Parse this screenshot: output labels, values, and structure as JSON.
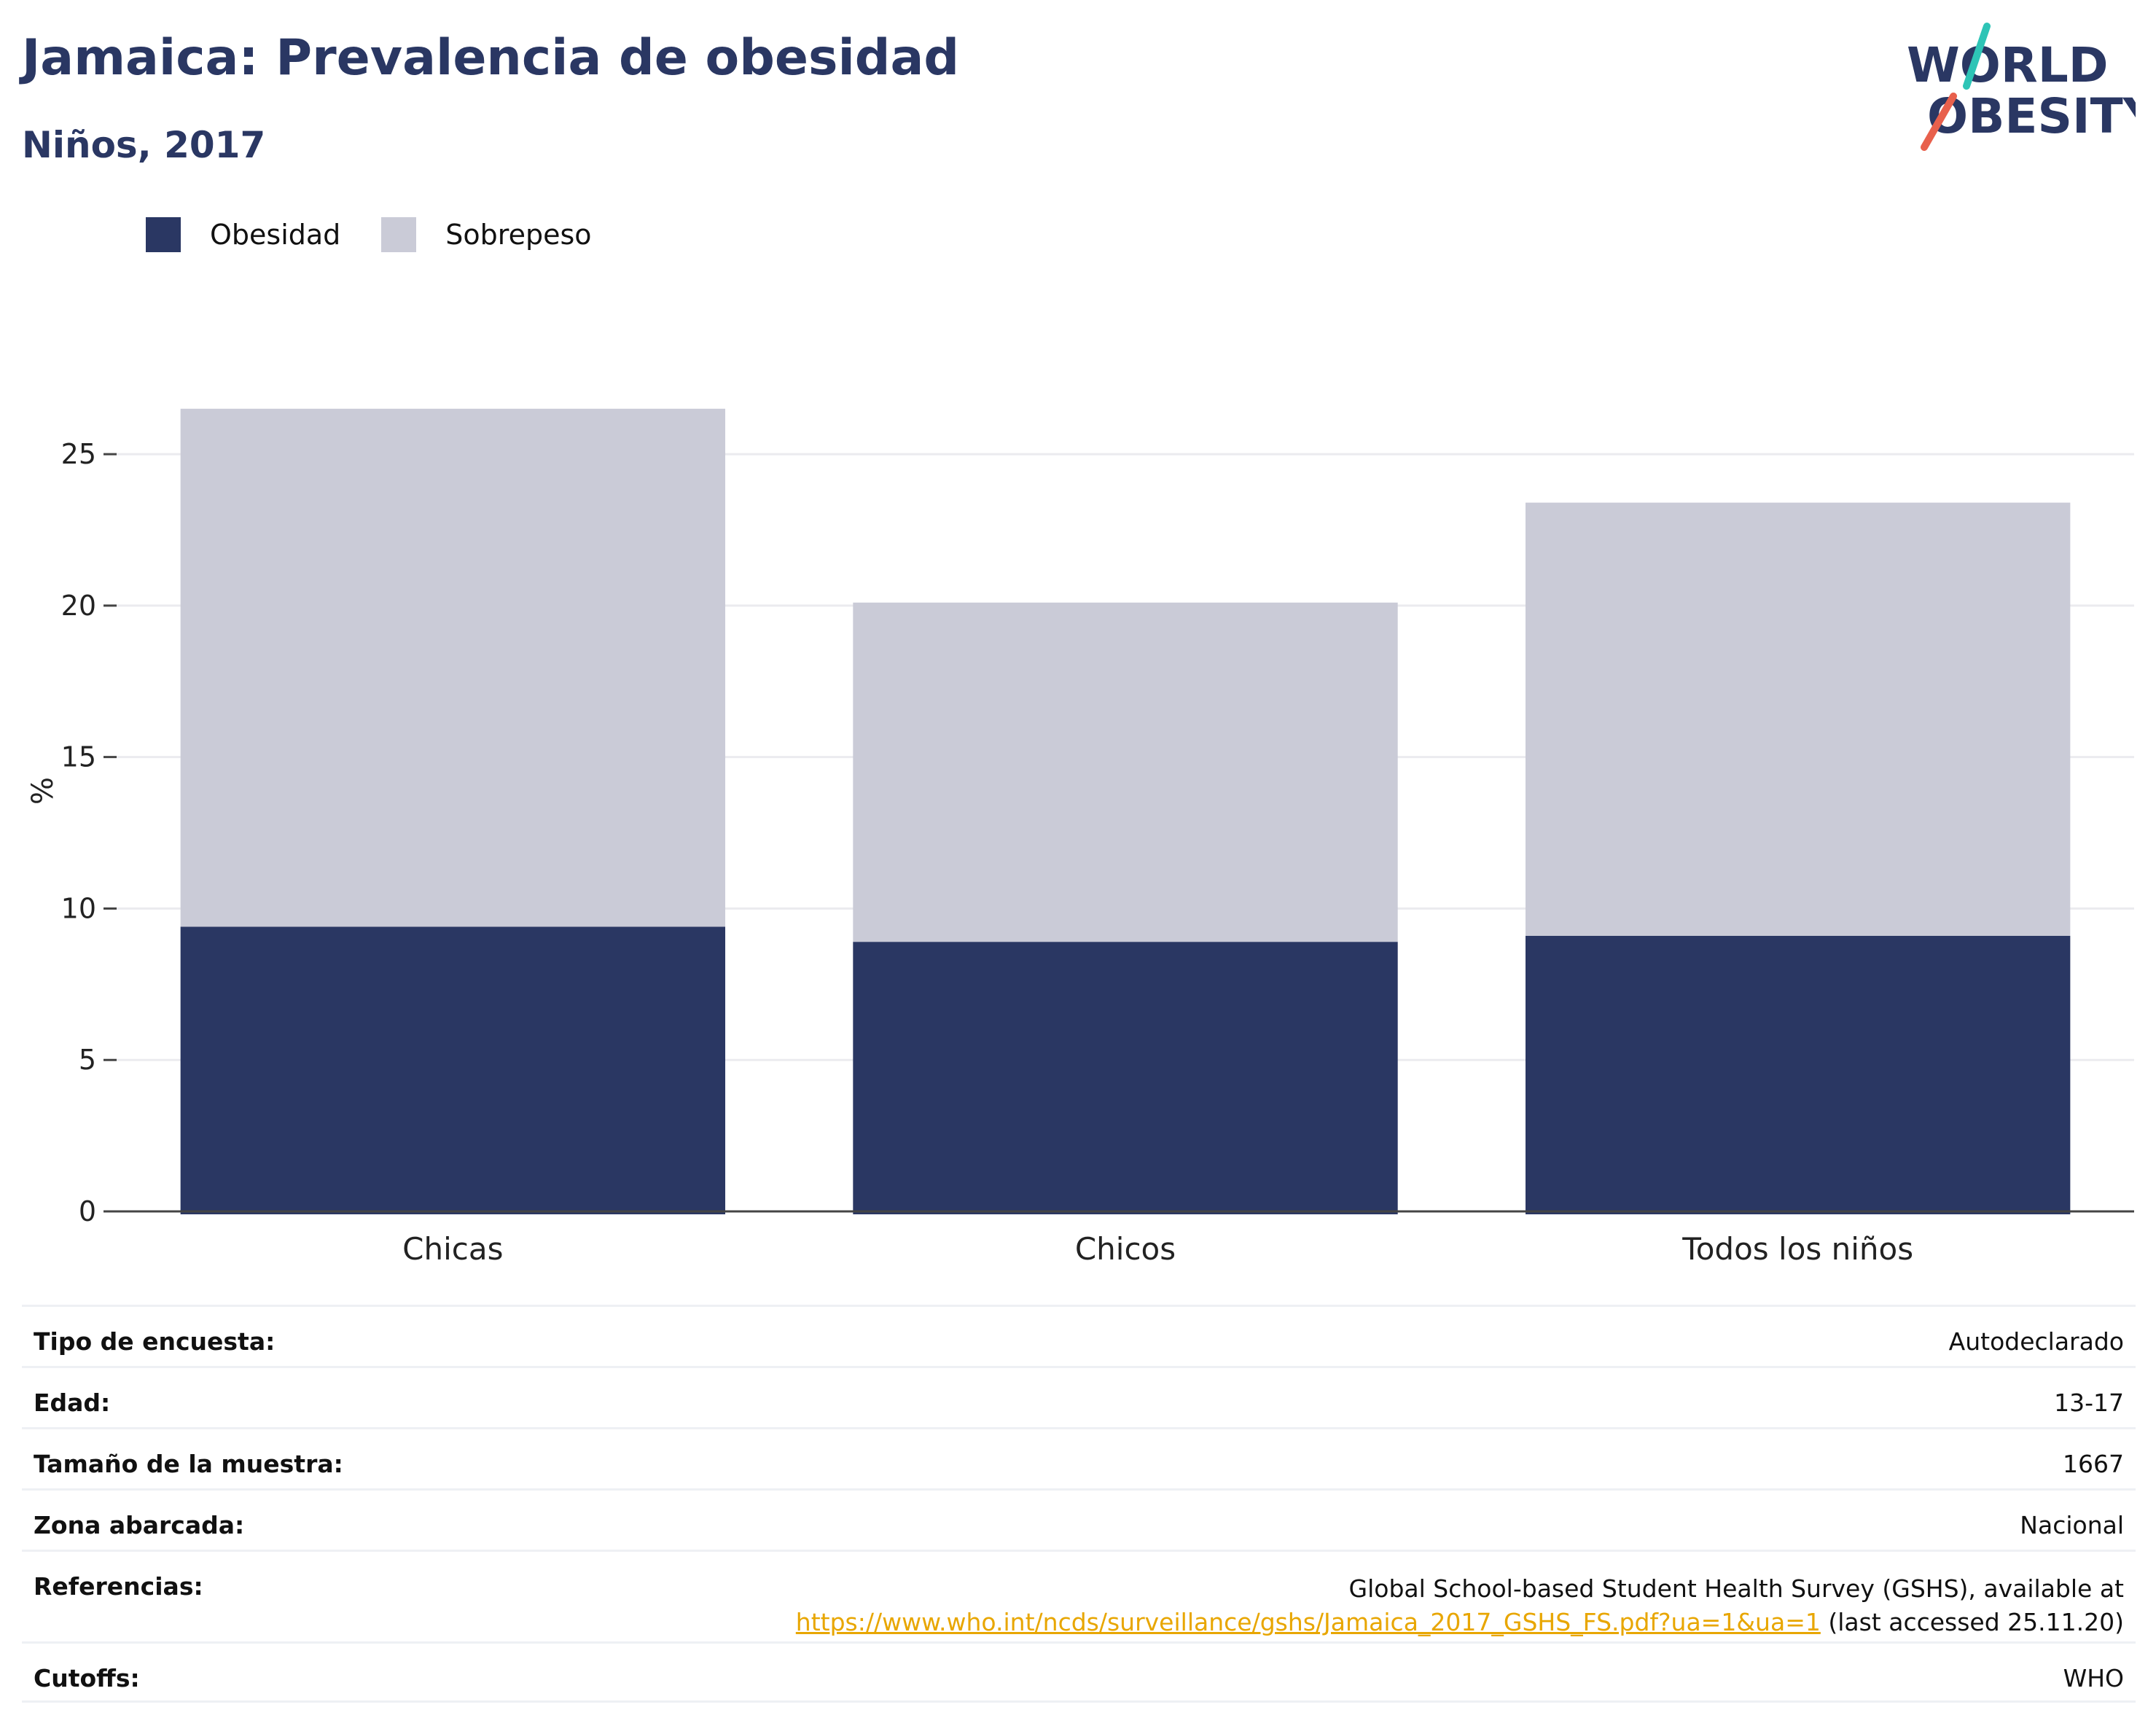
{
  "header": {
    "title": "Jamaica: Prevalencia de obesidad",
    "subtitle": "Niños, 2017"
  },
  "logo": {
    "line1": "WORLD",
    "line2": "OBESITY",
    "icon": "world-obesity-logo-icon",
    "slash_colors": [
      "#2ec4b6",
      "#e8604c"
    ]
  },
  "legend": {
    "items": [
      {
        "label": "Obesidad",
        "color": "#2a3763"
      },
      {
        "label": "Sobrepeso",
        "color": "#cacbd7"
      }
    ],
    "placement": "top-left"
  },
  "chart_data": {
    "type": "bar",
    "stacked": true,
    "categories": [
      "Chicas",
      "Chicos",
      "Todos los niños"
    ],
    "series": [
      {
        "name": "Obesidad",
        "values": [
          9.4,
          8.9,
          9.1
        ],
        "color": "#2a3763"
      },
      {
        "name": "Sobrepeso",
        "values": [
          17.1,
          11.2,
          14.3
        ],
        "color": "#cacbd7"
      }
    ],
    "ylabel": "%",
    "ylim": [
      0,
      27
    ],
    "yticks": [
      0,
      5,
      10,
      15,
      20,
      25
    ],
    "grid": true,
    "legend_placement": "top-left"
  },
  "info": {
    "rows": [
      {
        "label": "Tipo de encuesta:",
        "value": "Autodeclarado"
      },
      {
        "label": "Edad:",
        "value": "13-17"
      },
      {
        "label": "Tamaño de la muestra:",
        "value": "1667"
      },
      {
        "label": "Zona abarcada:",
        "value": "Nacional"
      }
    ],
    "references": {
      "label": "Referencias:",
      "text": "Global School-based Student Health Survey (GSHS), available at",
      "link": "https://www.who.int/ncds/surveillance/gshs/Jamaica_2017_GSHS_FS.pdf?ua=1&ua=1",
      "suffix": " (last accessed 25.11.20)"
    },
    "cutoffs": {
      "label": "Cutoffs:",
      "value": "WHO"
    }
  }
}
